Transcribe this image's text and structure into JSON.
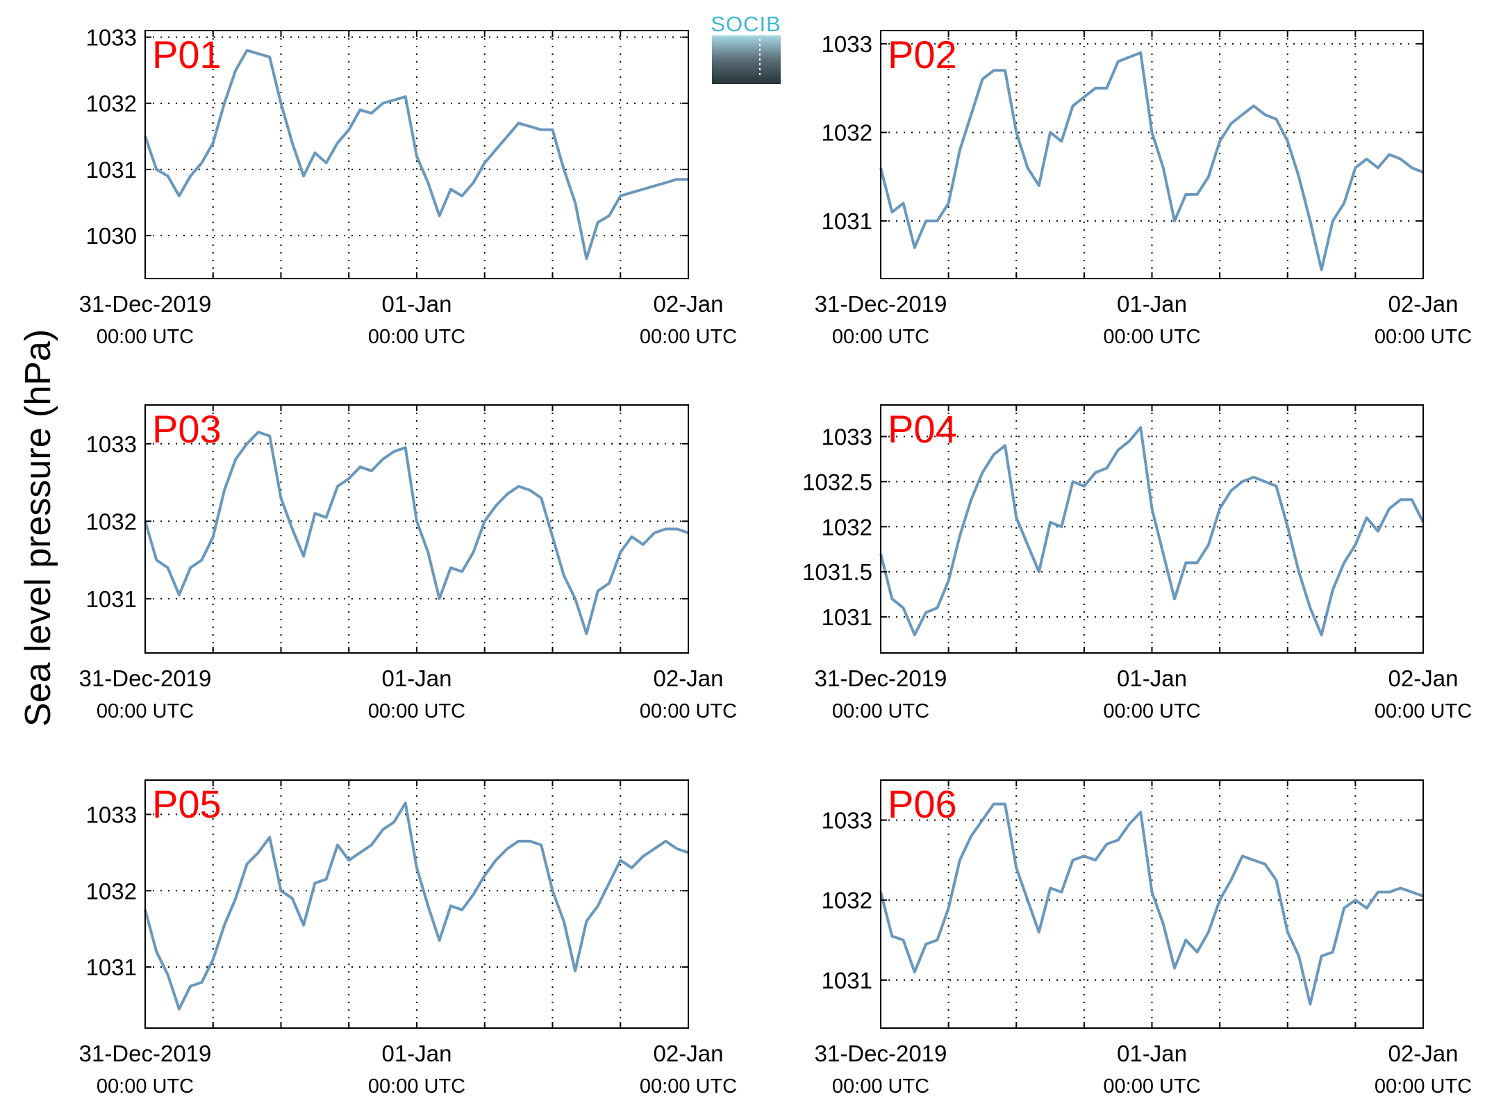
{
  "figure": {
    "ylabel": "Sea level pressure (hPa)",
    "logo_text": "SOCIB",
    "x_tick_labels": [
      {
        "main": "31-Dec-2019",
        "sub": "00:00 UTC"
      },
      {
        "main": "01-Jan",
        "sub": "00:00 UTC"
      },
      {
        "main": "02-Jan",
        "sub": "00:00 UTC"
      }
    ],
    "colors": {
      "line": "#6a97bd",
      "label": "#ff0000",
      "axis": "#000000",
      "grid": "#000000"
    }
  },
  "chart_data": [
    {
      "type": "line",
      "title": "P01",
      "xlabel": "",
      "ylabel": "Sea level pressure (hPa)",
      "x_unit": "hours since 31-Dec-2019 00:00 UTC",
      "xlim": [
        0,
        48
      ],
      "ylim": [
        1029.35,
        1033.1
      ],
      "yticks": [
        1030,
        1031,
        1032,
        1033
      ],
      "ytick_labels": [
        "1030",
        "1031",
        "1032",
        "1033"
      ],
      "grid": true,
      "series": [
        {
          "name": "P01",
          "x": [
            0,
            1,
            2,
            3,
            4,
            5,
            6,
            7,
            8,
            9,
            10,
            11,
            12,
            13,
            14,
            15,
            16,
            17,
            18,
            19,
            20,
            21,
            22,
            23,
            24,
            25,
            26,
            27,
            28,
            29,
            30,
            31,
            32,
            33,
            34,
            35,
            36,
            37,
            38,
            39,
            40,
            41,
            42,
            43,
            44,
            45,
            46,
            47,
            48
          ],
          "values": [
            1031.5,
            1031.0,
            1030.9,
            1030.6,
            1030.9,
            1031.1,
            1031.4,
            1032.0,
            1032.5,
            1032.8,
            1032.75,
            1032.7,
            1032.0,
            1031.4,
            1030.9,
            1031.25,
            1031.1,
            1031.4,
            1031.6,
            1031.9,
            1031.85,
            1032.0,
            1032.05,
            1032.1,
            1031.2,
            1030.8,
            1030.3,
            1030.7,
            1030.6,
            1030.8,
            1031.1,
            1031.3,
            1031.5,
            1031.7,
            1031.65,
            1031.6,
            1031.6,
            1031.0,
            1030.5,
            1029.65,
            1030.2,
            1030.3,
            1030.6,
            1030.65,
            1030.7,
            1030.75,
            1030.8,
            1030.85,
            1030.85
          ]
        }
      ]
    },
    {
      "type": "line",
      "title": "P02",
      "xlabel": "",
      "ylabel": "Sea level pressure (hPa)",
      "x_unit": "hours since 31-Dec-2019 00:00 UTC",
      "xlim": [
        0,
        48
      ],
      "ylim": [
        1030.35,
        1033.15
      ],
      "yticks": [
        1031,
        1032,
        1033
      ],
      "ytick_labels": [
        "1031",
        "1032",
        "1033"
      ],
      "grid": true,
      "series": [
        {
          "name": "P02",
          "x": [
            0,
            1,
            2,
            3,
            4,
            5,
            6,
            7,
            8,
            9,
            10,
            11,
            12,
            13,
            14,
            15,
            16,
            17,
            18,
            19,
            20,
            21,
            22,
            23,
            24,
            25,
            26,
            27,
            28,
            29,
            30,
            31,
            32,
            33,
            34,
            35,
            36,
            37,
            38,
            39,
            40,
            41,
            42,
            43,
            44,
            45,
            46,
            47,
            48
          ],
          "values": [
            1031.6,
            1031.1,
            1031.2,
            1030.7,
            1031.0,
            1031.0,
            1031.2,
            1031.8,
            1032.2,
            1032.6,
            1032.7,
            1032.7,
            1032.0,
            1031.6,
            1031.4,
            1032.0,
            1031.9,
            1032.3,
            1032.4,
            1032.5,
            1032.5,
            1032.8,
            1032.85,
            1032.9,
            1032.0,
            1031.6,
            1031.0,
            1031.3,
            1031.3,
            1031.5,
            1031.9,
            1032.1,
            1032.2,
            1032.3,
            1032.2,
            1032.15,
            1031.9,
            1031.5,
            1031.0,
            1030.45,
            1031.0,
            1031.2,
            1031.6,
            1031.7,
            1031.6,
            1031.75,
            1031.7,
            1031.6,
            1031.55
          ]
        }
      ]
    },
    {
      "type": "line",
      "title": "P03",
      "xlabel": "",
      "ylabel": "Sea level pressure (hPa)",
      "x_unit": "hours since 31-Dec-2019 00:00 UTC",
      "xlim": [
        0,
        48
      ],
      "ylim": [
        1030.3,
        1033.5
      ],
      "yticks": [
        1031,
        1032,
        1033
      ],
      "ytick_labels": [
        "1031",
        "1032",
        "1033"
      ],
      "grid": true,
      "series": [
        {
          "name": "P03",
          "x": [
            0,
            1,
            2,
            3,
            4,
            5,
            6,
            7,
            8,
            9,
            10,
            11,
            12,
            13,
            14,
            15,
            16,
            17,
            18,
            19,
            20,
            21,
            22,
            23,
            24,
            25,
            26,
            27,
            28,
            29,
            30,
            31,
            32,
            33,
            34,
            35,
            36,
            37,
            38,
            39,
            40,
            41,
            42,
            43,
            44,
            45,
            46,
            47,
            48
          ],
          "values": [
            1032.0,
            1031.5,
            1031.4,
            1031.05,
            1031.4,
            1031.5,
            1031.8,
            1032.4,
            1032.8,
            1033.0,
            1033.15,
            1033.1,
            1032.3,
            1031.9,
            1031.55,
            1032.1,
            1032.05,
            1032.45,
            1032.55,
            1032.7,
            1032.65,
            1032.8,
            1032.9,
            1032.95,
            1032.0,
            1031.6,
            1031.0,
            1031.4,
            1031.35,
            1031.6,
            1032.0,
            1032.2,
            1032.35,
            1032.45,
            1032.4,
            1032.3,
            1031.8,
            1031.3,
            1031.0,
            1030.55,
            1031.1,
            1031.2,
            1031.6,
            1031.8,
            1031.7,
            1031.85,
            1031.9,
            1031.9,
            1031.85
          ]
        }
      ]
    },
    {
      "type": "line",
      "title": "P04",
      "xlabel": "",
      "ylabel": "Sea level pressure (hPa)",
      "x_unit": "hours since 31-Dec-2019 00:00 UTC",
      "xlim": [
        0,
        48
      ],
      "ylim": [
        1030.6,
        1033.35
      ],
      "yticks": [
        1031,
        1031.5,
        1032,
        1032.5,
        1033
      ],
      "ytick_labels": [
        "1031",
        "1031.5",
        "1032",
        "1032.5",
        "1033"
      ],
      "grid": true,
      "series": [
        {
          "name": "P04",
          "x": [
            0,
            1,
            2,
            3,
            4,
            5,
            6,
            7,
            8,
            9,
            10,
            11,
            12,
            13,
            14,
            15,
            16,
            17,
            18,
            19,
            20,
            21,
            22,
            23,
            24,
            25,
            26,
            27,
            28,
            29,
            30,
            31,
            32,
            33,
            34,
            35,
            36,
            37,
            38,
            39,
            40,
            41,
            42,
            43,
            44,
            45,
            46,
            47,
            48
          ],
          "values": [
            1031.7,
            1031.2,
            1031.1,
            1030.8,
            1031.05,
            1031.1,
            1031.4,
            1031.9,
            1032.3,
            1032.6,
            1032.8,
            1032.9,
            1032.1,
            1031.8,
            1031.5,
            1032.05,
            1032.0,
            1032.5,
            1032.45,
            1032.6,
            1032.65,
            1032.85,
            1032.95,
            1033.1,
            1032.2,
            1031.7,
            1031.2,
            1031.6,
            1031.6,
            1031.8,
            1032.2,
            1032.4,
            1032.5,
            1032.55,
            1032.5,
            1032.45,
            1032.0,
            1031.5,
            1031.1,
            1030.8,
            1031.3,
            1031.6,
            1031.8,
            1032.1,
            1031.95,
            1032.2,
            1032.3,
            1032.3,
            1032.05
          ]
        }
      ]
    },
    {
      "type": "line",
      "title": "P05",
      "xlabel": "",
      "ylabel": "Sea level pressure (hPa)",
      "x_unit": "hours since 31-Dec-2019 00:00 UTC",
      "xlim": [
        0,
        48
      ],
      "ylim": [
        1030.2,
        1033.45
      ],
      "yticks": [
        1031,
        1032,
        1033
      ],
      "ytick_labels": [
        "1031",
        "1032",
        "1033"
      ],
      "grid": true,
      "series": [
        {
          "name": "P05",
          "x": [
            0,
            1,
            2,
            3,
            4,
            5,
            6,
            7,
            8,
            9,
            10,
            11,
            12,
            13,
            14,
            15,
            16,
            17,
            18,
            19,
            20,
            21,
            22,
            23,
            24,
            25,
            26,
            27,
            28,
            29,
            30,
            31,
            32,
            33,
            34,
            35,
            36,
            37,
            38,
            39,
            40,
            41,
            42,
            43,
            44,
            45,
            46,
            47,
            48
          ],
          "values": [
            1031.75,
            1031.2,
            1030.9,
            1030.45,
            1030.75,
            1030.8,
            1031.1,
            1031.55,
            1031.9,
            1032.35,
            1032.5,
            1032.7,
            1032.0,
            1031.9,
            1031.55,
            1032.1,
            1032.15,
            1032.6,
            1032.4,
            1032.5,
            1032.6,
            1032.8,
            1032.9,
            1033.15,
            1032.3,
            1031.8,
            1031.35,
            1031.8,
            1031.75,
            1031.95,
            1032.2,
            1032.4,
            1032.55,
            1032.65,
            1032.65,
            1032.6,
            1032.0,
            1031.6,
            1030.95,
            1031.6,
            1031.8,
            1032.1,
            1032.4,
            1032.3,
            1032.45,
            1032.55,
            1032.65,
            1032.55,
            1032.5
          ]
        }
      ]
    },
    {
      "type": "line",
      "title": "P06",
      "xlabel": "",
      "ylabel": "Sea level pressure (hPa)",
      "x_unit": "hours since 31-Dec-2019 00:00 UTC",
      "xlim": [
        0,
        48
      ],
      "ylim": [
        1030.4,
        1033.5
      ],
      "yticks": [
        1031,
        1032,
        1033
      ],
      "ytick_labels": [
        "1031",
        "1032",
        "1033"
      ],
      "grid": true,
      "series": [
        {
          "name": "P06",
          "x": [
            0,
            1,
            2,
            3,
            4,
            5,
            6,
            7,
            8,
            9,
            10,
            11,
            12,
            13,
            14,
            15,
            16,
            17,
            18,
            19,
            20,
            21,
            22,
            23,
            24,
            25,
            26,
            27,
            28,
            29,
            30,
            31,
            32,
            33,
            34,
            35,
            36,
            37,
            38,
            39,
            40,
            41,
            42,
            43,
            44,
            45,
            46,
            47,
            48
          ],
          "values": [
            1032.1,
            1031.55,
            1031.5,
            1031.1,
            1031.45,
            1031.5,
            1031.9,
            1032.5,
            1032.8,
            1033.0,
            1033.2,
            1033.2,
            1032.4,
            1032.0,
            1031.6,
            1032.15,
            1032.1,
            1032.5,
            1032.55,
            1032.5,
            1032.7,
            1032.75,
            1032.95,
            1033.1,
            1032.1,
            1031.7,
            1031.15,
            1031.5,
            1031.35,
            1031.6,
            1032.0,
            1032.25,
            1032.55,
            1032.5,
            1032.45,
            1032.25,
            1031.6,
            1031.3,
            1030.7,
            1031.3,
            1031.35,
            1031.9,
            1032.0,
            1031.9,
            1032.1,
            1032.1,
            1032.15,
            1032.1,
            1032.05
          ]
        }
      ]
    }
  ]
}
